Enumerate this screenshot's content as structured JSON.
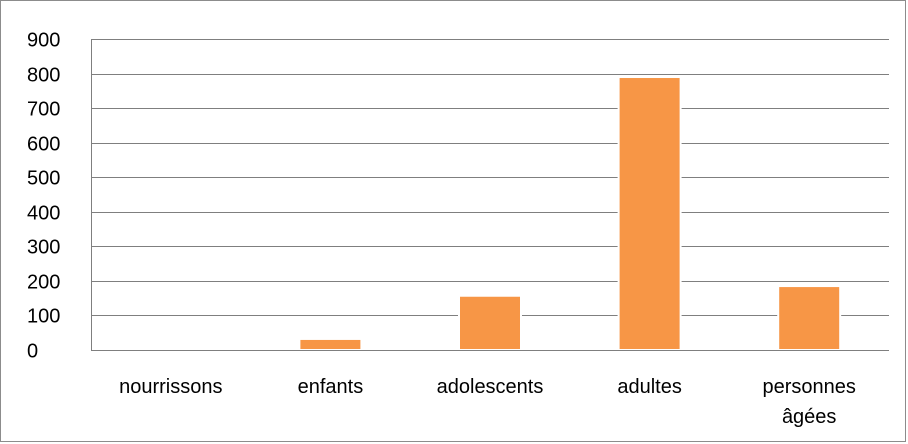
{
  "chart_data": {
    "type": "bar",
    "categories": [
      [
        "nourrissons"
      ],
      [
        "enfants"
      ],
      [
        "adolescents"
      ],
      [
        "adultes"
      ],
      [
        "personnes",
        "âgées"
      ]
    ],
    "values": [
      3,
      32,
      157,
      790,
      185
    ],
    "ylim": [
      0,
      900
    ],
    "yticks": [
      0,
      100,
      200,
      300,
      400,
      500,
      600,
      700,
      800,
      900
    ],
    "grid": true,
    "legend": "none",
    "colors": {
      "bar": "#f79646",
      "bar_border": "#ffffff",
      "grid": "#7f7f7f",
      "axis": "#7f7f7f"
    }
  }
}
